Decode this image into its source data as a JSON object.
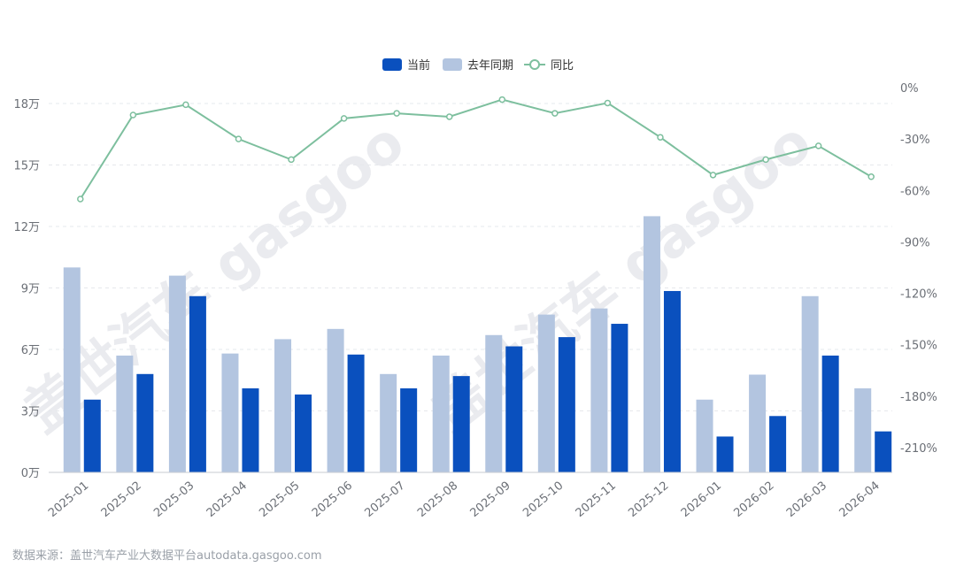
{
  "chart_data": {
    "type": "bar",
    "categories": [
      "2025-01",
      "2025-02",
      "2025-03",
      "2025-04",
      "2025-05",
      "2025-06",
      "2025-07",
      "2025-08",
      "2025-09",
      "2025-10",
      "2025-11",
      "2025-12",
      "2026-01",
      "2026-02",
      "2026-03",
      "2026-04"
    ],
    "series": [
      {
        "name": "去年同期",
        "type": "bar",
        "color": "#b3c5e0",
        "axis": "left",
        "values": [
          100000,
          57000,
          96000,
          58000,
          65000,
          70000,
          48000,
          57000,
          67000,
          77000,
          80000,
          125000,
          35500,
          47700,
          86000,
          41000
        ]
      },
      {
        "name": "当前",
        "type": "bar",
        "color": "#0a50be",
        "axis": "left",
        "values": [
          35500,
          48000,
          86000,
          41000,
          38000,
          57500,
          41000,
          47000,
          61500,
          66000,
          72500,
          88500,
          17500,
          27500,
          57000,
          20000
        ]
      },
      {
        "name": "同比",
        "type": "line",
        "color": "#7dbf9e",
        "axis": "right",
        "values": [
          -65,
          -16,
          -10,
          -30,
          -42,
          -18,
          -15,
          -17,
          -7,
          -15,
          -9,
          -29,
          -51,
          -42,
          -34,
          -52
        ]
      }
    ],
    "left_axis": {
      "ticks": [
        "0万",
        "3万",
        "6万",
        "9万",
        "12万",
        "15万",
        "18万"
      ],
      "range": [
        0,
        180000
      ]
    },
    "right_axis": {
      "ticks": [
        "0%",
        "-30%",
        "-60%",
        "-90%",
        "-120%",
        "-150%",
        "-180%",
        "-210%"
      ],
      "range": [
        -210,
        0
      ]
    },
    "grid": true,
    "legend_position": "top-center"
  },
  "legend": [
    {
      "label": "当前",
      "color": "#0a50be",
      "shape": "rect"
    },
    {
      "label": "去年同期",
      "color": "#b3c5e0",
      "shape": "rect"
    },
    {
      "label": "同比",
      "color": "#7dbf9e",
      "shape": "line-circle"
    }
  ],
  "watermark": "盖世汽车 gasgoo",
  "source_text": "数据来源：盖世汽车产业大数据平台autodata.gasgoo.com"
}
